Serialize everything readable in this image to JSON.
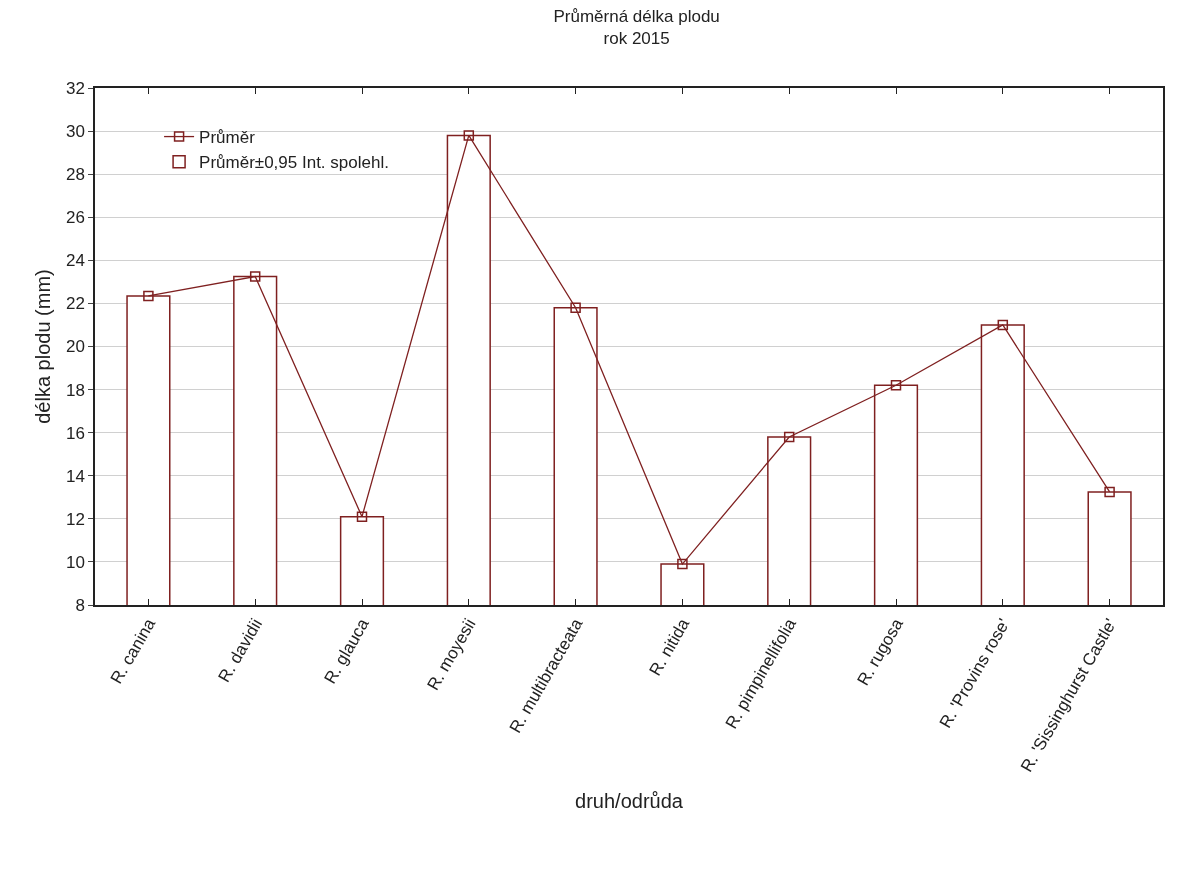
{
  "chart_data": {
    "type": "bar",
    "title": "Průměrná délka plodu\nrok 2015",
    "xlabel": "druh/odrůda",
    "ylabel": "délka plodu (mm)",
    "categories": [
      "R. canina",
      "R. davidii",
      "R. glauca",
      "R. moyesii",
      "R. multibracteata",
      "R. nitida",
      "R. pimpinellifolia",
      "R. rugosa",
      "R. 'Provins rose'",
      "R. 'Sissinghurst Castle'"
    ],
    "series": [
      {
        "name": "Průměr±0,95 Int. spolehl.",
        "color": "#ffffff",
        "values": [
          22.35,
          23.25,
          12.1,
          29.8,
          21.8,
          9.9,
          15.8,
          18.2,
          21.0,
          13.25
        ]
      },
      {
        "name": "Průměr",
        "type": "line",
        "color": "#7f2020",
        "marker": "square",
        "values": [
          22.35,
          23.25,
          12.1,
          29.8,
          21.8,
          9.9,
          15.8,
          18.2,
          21.0,
          13.25
        ]
      }
    ],
    "ylim": [
      8,
      32
    ],
    "yticks": [
      8,
      10,
      12,
      14,
      16,
      18,
      20,
      22,
      24,
      26,
      28,
      30,
      32
    ],
    "grid": "y",
    "legend": "top left"
  }
}
